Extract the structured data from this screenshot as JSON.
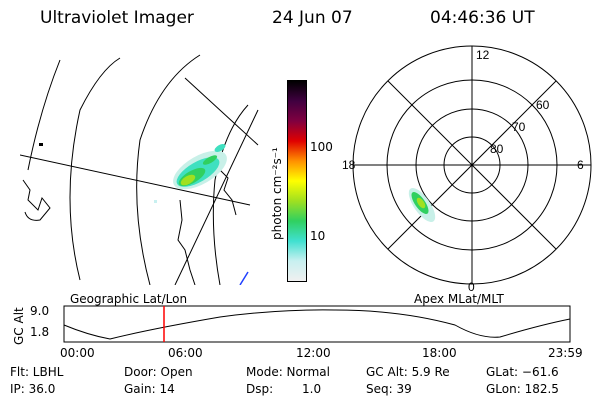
{
  "header": {
    "title": "Ultraviolet Imager",
    "date": "24 Jun 07",
    "time": "04:46:36 UT"
  },
  "colorbar": {
    "label": "photon cm⁻²s⁻¹",
    "tick_100": "100",
    "tick_10": "10",
    "scale": "log",
    "colors": [
      "#f0f0f0",
      "#c8f0f0",
      "#40e0d0",
      "#30d060",
      "#a0e020",
      "#ffff00",
      "#ff9000",
      "#e00000",
      "#800040",
      "#400040",
      "#000000"
    ]
  },
  "polar": {
    "mlt_12": "12",
    "mlt_18": "18",
    "mlt_6": "6",
    "mlt_0": "0",
    "lat_60": "60",
    "lat_70": "70",
    "lat_80": "80"
  },
  "captions": {
    "left": "Geographic Lat/Lon",
    "right": "Apex MLat/MLT"
  },
  "alt_plot": {
    "ylabel": "GC Alt",
    "ymax": "9.0",
    "ymin": "1.8",
    "xticks": [
      "00:00",
      "06:00",
      "12:00",
      "18:00",
      "23:59"
    ],
    "marker_time": "04:46:36 UT"
  },
  "info": {
    "flt": "Flt: LBHL",
    "ip": "IP: 36.0",
    "door": "Door: Open",
    "gain": "Gain: 14",
    "mode": "Mode: Normal",
    "dsp_label": "Dsp:",
    "dsp_value": "1.0",
    "gcalt": "GC Alt: 5.9 Re",
    "seq": "Seq: 39",
    "glat": "GLat: −61.6",
    "glon": "GLon: 182.5"
  }
}
